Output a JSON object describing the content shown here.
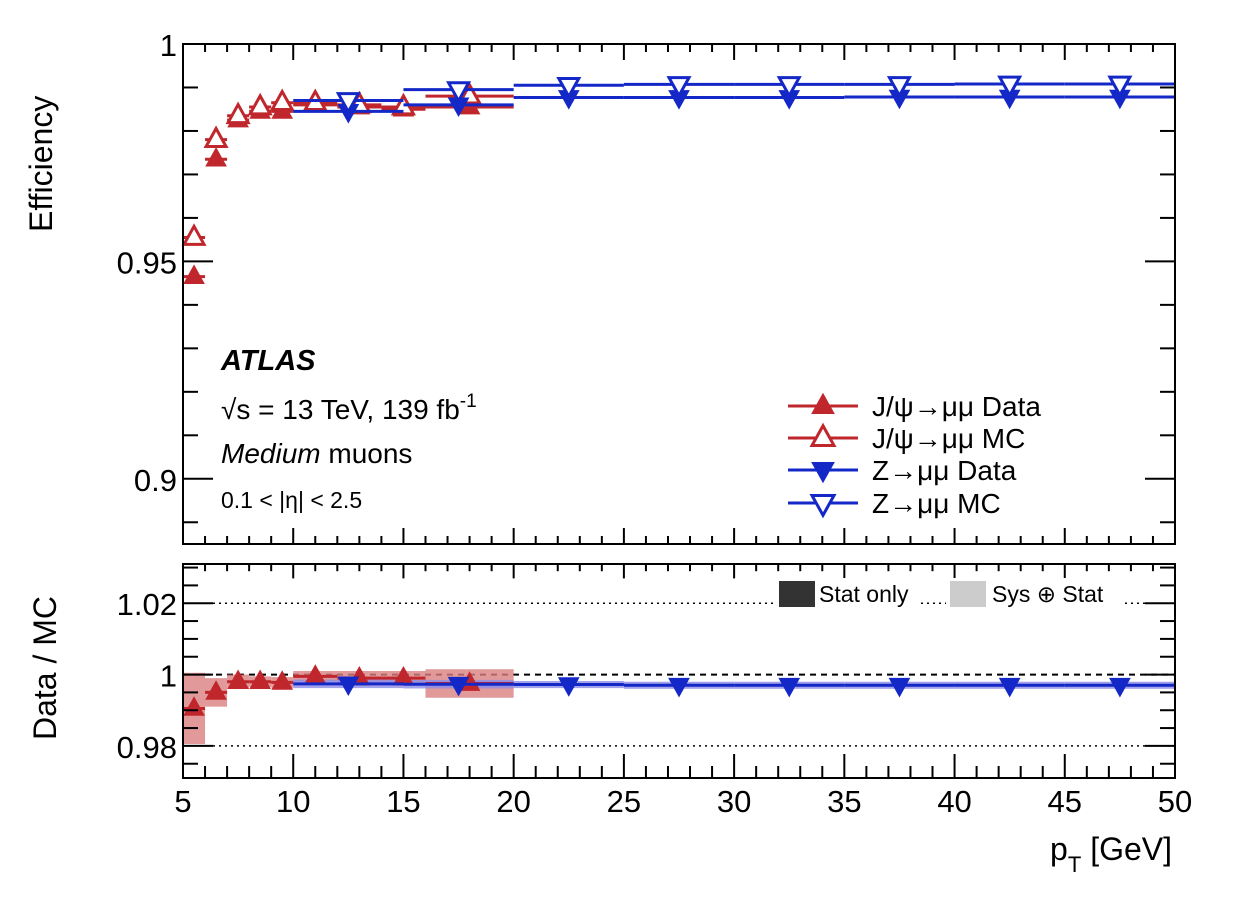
{
  "chart_data": {
    "type": "scatter",
    "x_unit_label_main": "p",
    "x_unit_label_sub": "T",
    "x_unit_label_rest": " [GeV]",
    "xlim": [
      5,
      50
    ],
    "xticks": [
      "5",
      "10",
      "15",
      "20",
      "25",
      "30",
      "35",
      "40",
      "45",
      "50"
    ],
    "top_panel": {
      "ylabel": "Efficiency",
      "ylim": [
        0.885,
        1.0
      ],
      "yticks": [
        {
          "value": 1.0,
          "label": "1"
        },
        {
          "value": 0.95,
          "label": "0.95"
        },
        {
          "value": 0.9,
          "label": "0.9"
        }
      ],
      "series": [
        {
          "name": "J/ψ→μμ Data",
          "marker": "triangle-up-filled",
          "color": "#c0272d",
          "points": [
            {
              "x": 5.5,
              "xerr": 0.5,
              "y": 0.9465
            },
            {
              "x": 6.5,
              "xerr": 0.5,
              "y": 0.9735
            },
            {
              "x": 7.5,
              "xerr": 0.5,
              "y": 0.9825
            },
            {
              "x": 8.5,
              "xerr": 0.5,
              "y": 0.9845
            },
            {
              "x": 9.5,
              "xerr": 0.5,
              "y": 0.9845
            },
            {
              "x": 11.0,
              "xerr": 1.0,
              "y": 0.986
            },
            {
              "x": 13.0,
              "xerr": 1.0,
              "y": 0.9855
            },
            {
              "x": 15.0,
              "xerr": 1.0,
              "y": 0.985
            },
            {
              "x": 18.0,
              "xerr": 2.0,
              "y": 0.9855
            }
          ]
        },
        {
          "name": "J/ψ→μμ MC",
          "marker": "triangle-up-open",
          "color": "#c0272d",
          "points": [
            {
              "x": 5.5,
              "xerr": 0.5,
              "y": 0.9555
            },
            {
              "x": 6.5,
              "xerr": 0.5,
              "y": 0.978
            },
            {
              "x": 7.5,
              "xerr": 0.5,
              "y": 0.9835
            },
            {
              "x": 8.5,
              "xerr": 0.5,
              "y": 0.9855
            },
            {
              "x": 9.5,
              "xerr": 0.5,
              "y": 0.9865
            },
            {
              "x": 11.0,
              "xerr": 1.0,
              "y": 0.9865
            },
            {
              "x": 13.0,
              "xerr": 1.0,
              "y": 0.986
            },
            {
              "x": 15.0,
              "xerr": 1.0,
              "y": 0.9855
            },
            {
              "x": 18.0,
              "xerr": 2.0,
              "y": 0.988
            }
          ]
        },
        {
          "name": "Z→μμ Data",
          "marker": "triangle-down-filled",
          "color": "#1428c8",
          "points": [
            {
              "x": 12.5,
              "xerr": 2.5,
              "y": 0.9845
            },
            {
              "x": 17.5,
              "xerr": 2.5,
              "y": 0.986
            },
            {
              "x": 22.5,
              "xerr": 2.5,
              "y": 0.9877
            },
            {
              "x": 27.5,
              "xerr": 2.5,
              "y": 0.9877
            },
            {
              "x": 32.5,
              "xerr": 2.5,
              "y": 0.9877
            },
            {
              "x": 37.5,
              "xerr": 2.5,
              "y": 0.9878
            },
            {
              "x": 42.5,
              "xerr": 2.5,
              "y": 0.9878
            },
            {
              "x": 47.5,
              "xerr": 2.5,
              "y": 0.9878
            }
          ]
        },
        {
          "name": "Z→μμ MC",
          "marker": "triangle-down-open",
          "color": "#1428c8",
          "points": [
            {
              "x": 12.5,
              "xerr": 2.5,
              "y": 0.987
            },
            {
              "x": 17.5,
              "xerr": 2.5,
              "y": 0.9895
            },
            {
              "x": 22.5,
              "xerr": 2.5,
              "y": 0.9905
            },
            {
              "x": 27.5,
              "xerr": 2.5,
              "y": 0.9907
            },
            {
              "x": 32.5,
              "xerr": 2.5,
              "y": 0.9907
            },
            {
              "x": 37.5,
              "xerr": 2.5,
              "y": 0.9907
            },
            {
              "x": 42.5,
              "xerr": 2.5,
              "y": 0.9908
            },
            {
              "x": 47.5,
              "xerr": 2.5,
              "y": 0.9908
            }
          ]
        }
      ]
    },
    "bottom_panel": {
      "ylabel": "Data / MC",
      "ylim": [
        0.971,
        1.031
      ],
      "reference_line": 1.0,
      "yticks": [
        {
          "value": 1.02,
          "label": "1.02"
        },
        {
          "value": 1.0,
          "label": "1"
        },
        {
          "value": 0.98,
          "label": "0.98"
        }
      ],
      "legend": [
        {
          "label": "Stat only",
          "color": "#333333"
        },
        {
          "label": "Sys ⊕ Stat",
          "color": "#cccccc"
        }
      ],
      "series": [
        {
          "name": "J/ψ→μμ",
          "marker": "triangle-up-filled",
          "color": "#c0272d",
          "band_color": "#d98080",
          "points": [
            {
              "x": 5.5,
              "xerr": 0.5,
              "y": 0.9905,
              "sys": 0.01
            },
            {
              "x": 6.5,
              "xerr": 0.5,
              "y": 0.995,
              "sys": 0.004
            },
            {
              "x": 7.5,
              "xerr": 0.5,
              "y": 0.998,
              "sys": 0.002
            },
            {
              "x": 8.5,
              "xerr": 0.5,
              "y": 0.998,
              "sys": 0.0015
            },
            {
              "x": 9.5,
              "xerr": 0.5,
              "y": 0.9978,
              "sys": 0.0015
            },
            {
              "x": 11.0,
              "xerr": 1.0,
              "y": 0.9995,
              "sys": 0.0015
            },
            {
              "x": 13.0,
              "xerr": 1.0,
              "y": 0.999,
              "sys": 0.002
            },
            {
              "x": 15.0,
              "xerr": 1.0,
              "y": 0.999,
              "sys": 0.002
            },
            {
              "x": 18.0,
              "xerr": 2.0,
              "y": 0.9975,
              "sys": 0.004
            }
          ]
        },
        {
          "name": "Z→μμ",
          "marker": "triangle-down-filled",
          "color": "#1428c8",
          "band_color": "#8c8ce6",
          "points": [
            {
              "x": 12.5,
              "xerr": 2.5,
              "y": 0.9974,
              "sys": 0.0012
            },
            {
              "x": 17.5,
              "xerr": 2.5,
              "y": 0.9973,
              "sys": 0.0012
            },
            {
              "x": 22.5,
              "xerr": 2.5,
              "y": 0.9972,
              "sys": 0.001
            },
            {
              "x": 27.5,
              "xerr": 2.5,
              "y": 0.997,
              "sys": 0.001
            },
            {
              "x": 32.5,
              "xerr": 2.5,
              "y": 0.997,
              "sys": 0.001
            },
            {
              "x": 37.5,
              "xerr": 2.5,
              "y": 0.997,
              "sys": 0.001
            },
            {
              "x": 42.5,
              "xerr": 2.5,
              "y": 0.997,
              "sys": 0.001
            },
            {
              "x": 47.5,
              "xerr": 2.5,
              "y": 0.997,
              "sys": 0.001
            }
          ]
        }
      ]
    },
    "annotations": {
      "experiment": "ATLAS",
      "energy_sqrt": "√",
      "energy_s": "s = 13 TeV, 139 fb",
      "energy_exp": "-1",
      "selection_italic": "Medium",
      "selection_rest": " muons",
      "eta_range": "0.1 < |η| < 2.5"
    }
  }
}
